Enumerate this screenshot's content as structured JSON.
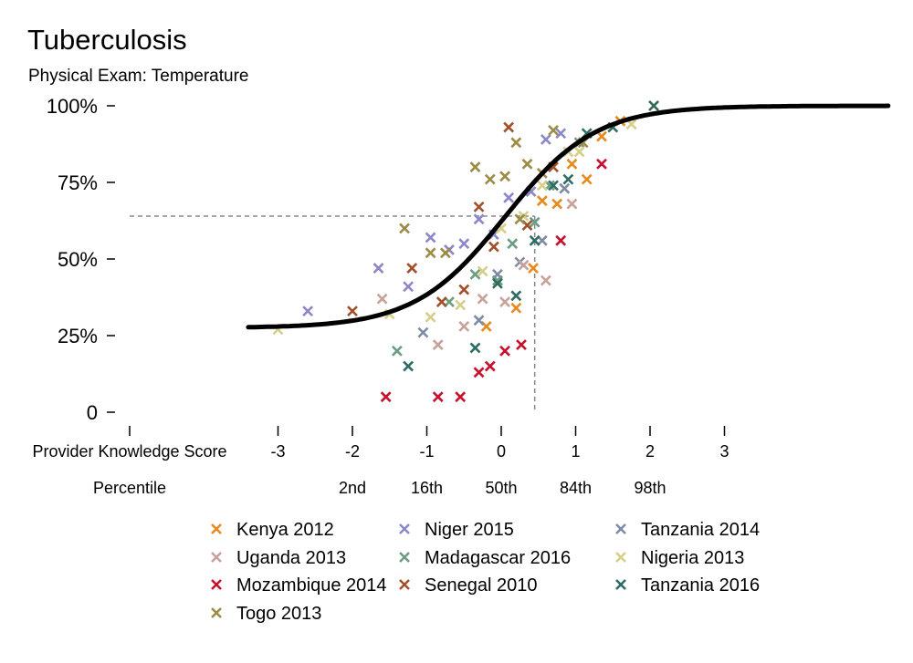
{
  "title": "Tuberculosis",
  "subtitle": "Physical Exam: Temperature",
  "chart_data": {
    "type": "scatter",
    "x_row_label": "Provider Knowledge Score",
    "percentile_row_label": "Percentile",
    "xlim": [
      -3.4,
      5.2
    ],
    "ylim": [
      0,
      1
    ],
    "y_ticks": [
      {
        "value": 0,
        "label": "0"
      },
      {
        "value": 0.25,
        "label": "25%"
      },
      {
        "value": 0.5,
        "label": "50%"
      },
      {
        "value": 0.75,
        "label": "75%"
      },
      {
        "value": 1,
        "label": "100%"
      }
    ],
    "x_ticks": [
      {
        "value": -3,
        "label": "-3"
      },
      {
        "value": -2,
        "label": "-2"
      },
      {
        "value": -1,
        "label": "-1"
      },
      {
        "value": 0,
        "label": "0"
      },
      {
        "value": 1,
        "label": "1"
      },
      {
        "value": 2,
        "label": "2"
      },
      {
        "value": 3,
        "label": "3"
      }
    ],
    "percentile_ticks": [
      {
        "value": -2,
        "label": "2nd"
      },
      {
        "value": -1,
        "label": "16th"
      },
      {
        "value": 0,
        "label": "50th"
      },
      {
        "value": 1,
        "label": "84th"
      },
      {
        "value": 2,
        "label": "98th"
      }
    ],
    "reference": {
      "x": 0.45,
      "y": 0.64
    },
    "curve": {
      "lower": 0.275,
      "upper": 1.0,
      "midpoint": 0.05,
      "slope": 1.65
    },
    "grid": false,
    "legend_position": "bottom",
    "series": [
      {
        "name": "Kenya 2012",
        "color": "#E78A1E",
        "points": [
          [
            -0.2,
            0.28
          ],
          [
            0.2,
            0.34
          ],
          [
            0.43,
            0.47
          ],
          [
            0.55,
            0.69
          ],
          [
            0.75,
            0.68
          ],
          [
            0.95,
            0.81
          ],
          [
            1.15,
            0.76
          ],
          [
            1.35,
            0.9
          ],
          [
            1.6,
            0.95
          ],
          [
            2.05,
            1.0
          ]
        ]
      },
      {
        "name": "Niger 2015",
        "color": "#8B87C9",
        "points": [
          [
            -2.6,
            0.33
          ],
          [
            -1.65,
            0.47
          ],
          [
            -1.25,
            0.41
          ],
          [
            -0.95,
            0.57
          ],
          [
            -0.7,
            0.53
          ],
          [
            -0.5,
            0.55
          ],
          [
            -0.3,
            0.63
          ],
          [
            -0.1,
            0.58
          ],
          [
            0.1,
            0.7
          ],
          [
            0.4,
            0.72
          ],
          [
            0.6,
            0.89
          ],
          [
            0.8,
            0.91
          ]
        ]
      },
      {
        "name": "Tanzania 2014",
        "color": "#7E8BA6",
        "points": [
          [
            -1.05,
            0.26
          ],
          [
            -0.3,
            0.3
          ],
          [
            -0.05,
            0.45
          ],
          [
            0.25,
            0.49
          ],
          [
            0.55,
            0.56
          ],
          [
            0.85,
            0.73
          ]
        ]
      },
      {
        "name": "Uganda 2013",
        "color": "#C7A29A",
        "points": [
          [
            -1.6,
            0.37
          ],
          [
            -0.85,
            0.22
          ],
          [
            -0.5,
            0.28
          ],
          [
            -0.25,
            0.37
          ],
          [
            0.05,
            0.36
          ],
          [
            0.3,
            0.48
          ],
          [
            0.6,
            0.43
          ],
          [
            0.95,
            0.68
          ]
        ]
      },
      {
        "name": "Madagascar 2016",
        "color": "#6C9C82",
        "points": [
          [
            -1.4,
            0.2
          ],
          [
            -0.7,
            0.36
          ],
          [
            -0.35,
            0.45
          ],
          [
            -0.05,
            0.43
          ],
          [
            0.15,
            0.55
          ],
          [
            0.45,
            0.62
          ],
          [
            0.65,
            0.74
          ],
          [
            1.05,
            0.88
          ]
        ]
      },
      {
        "name": "Nigeria 2013",
        "color": "#D5CF8A",
        "points": [
          [
            -3.0,
            0.27
          ],
          [
            -1.5,
            0.32
          ],
          [
            -0.95,
            0.31
          ],
          [
            -0.55,
            0.35
          ],
          [
            -0.25,
            0.46
          ],
          [
            0.0,
            0.6
          ],
          [
            0.3,
            0.64
          ],
          [
            0.55,
            0.74
          ],
          [
            0.9,
            0.85
          ],
          [
            1.05,
            0.85
          ],
          [
            1.75,
            0.94
          ]
        ]
      },
      {
        "name": "Mozambique 2014",
        "color": "#C8102E",
        "points": [
          [
            -1.55,
            0.05
          ],
          [
            -0.85,
            0.05
          ],
          [
            -0.55,
            0.05
          ],
          [
            -0.3,
            0.13
          ],
          [
            -0.15,
            0.15
          ],
          [
            0.05,
            0.2
          ],
          [
            0.27,
            0.22
          ],
          [
            0.8,
            0.56
          ],
          [
            1.35,
            0.81
          ]
        ]
      },
      {
        "name": "Senegal 2010",
        "color": "#A2502A",
        "points": [
          [
            -2.0,
            0.33
          ],
          [
            -1.2,
            0.47
          ],
          [
            -0.8,
            0.36
          ],
          [
            -0.5,
            0.4
          ],
          [
            -0.3,
            0.67
          ],
          [
            -0.1,
            0.54
          ],
          [
            0.35,
            0.61
          ],
          [
            0.7,
            0.8
          ],
          [
            0.1,
            0.93
          ]
        ]
      },
      {
        "name": "Tanzania 2016",
        "color": "#2E6B62",
        "points": [
          [
            -1.25,
            0.15
          ],
          [
            -0.35,
            0.21
          ],
          [
            -0.05,
            0.42
          ],
          [
            0.2,
            0.38
          ],
          [
            0.45,
            0.56
          ],
          [
            0.7,
            0.74
          ],
          [
            0.9,
            0.76
          ],
          [
            1.15,
            0.91
          ],
          [
            1.5,
            0.93
          ],
          [
            2.05,
            1.0
          ]
        ]
      },
      {
        "name": "Togo 2013",
        "color": "#9C8B45",
        "points": [
          [
            -1.3,
            0.6
          ],
          [
            -0.95,
            0.52
          ],
          [
            -0.35,
            0.8
          ],
          [
            -0.15,
            0.76
          ],
          [
            0.05,
            0.77
          ],
          [
            0.2,
            0.88
          ],
          [
            0.35,
            0.81
          ],
          [
            0.55,
            0.78
          ],
          [
            0.7,
            0.92
          ],
          [
            1.1,
            0.88
          ],
          [
            -0.75,
            0.52
          ],
          [
            0.25,
            0.63
          ]
        ]
      }
    ]
  }
}
